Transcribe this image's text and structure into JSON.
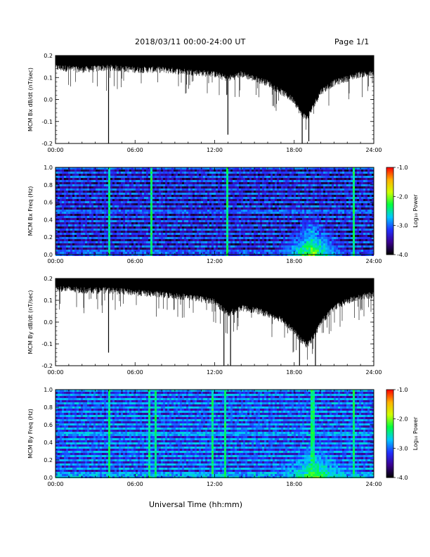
{
  "header": {
    "title": "2018/03/11  00:00-24:00 UT",
    "page": "Page 1/1"
  },
  "xaxis": {
    "label": "Universal Time (hh:mm)",
    "ticks": [
      "00:00",
      "06:00",
      "12:00",
      "18:00",
      "24:00"
    ]
  },
  "colorbar": {
    "label": "Log₁₀ Power",
    "ticks": [
      "-1.0",
      "-2.0",
      "-3.0",
      "-4.0"
    ],
    "range": [
      -4.0,
      -1.0
    ],
    "colormap": [
      "#000000",
      "#3a0090",
      "#2030ff",
      "#00c8ff",
      "#00ff40",
      "#d0ff00",
      "#ffb000",
      "#ff0000"
    ]
  },
  "chart_data": [
    {
      "type": "line",
      "ylabel": "MCM Bx dB/dt (nT/sec)",
      "xlim": [
        0,
        24
      ],
      "ylim": [
        -0.2,
        0.2
      ],
      "yticks": [
        "0.2",
        "0.1",
        "0.0",
        "-0.1",
        "-0.2"
      ],
      "x_ticks": [
        "00:00",
        "06:00",
        "12:00",
        "18:00",
        "24:00"
      ],
      "envelope": {
        "hours": [
          0,
          2,
          4,
          6,
          8,
          10,
          12,
          13,
          14,
          16,
          17,
          18,
          18.5,
          19,
          19.5,
          20,
          21,
          22,
          23,
          24
        ],
        "upper": [
          0.2,
          0.2,
          0.2,
          0.2,
          0.2,
          0.2,
          0.2,
          0.2,
          0.2,
          0.2,
          0.2,
          0.2,
          0.2,
          0.2,
          0.2,
          0.2,
          0.2,
          0.2,
          0.2,
          0.2
        ],
        "lower": [
          0.13,
          0.12,
          0.13,
          0.12,
          0.12,
          0.11,
          0.1,
          0.08,
          0.1,
          0.06,
          0.02,
          -0.02,
          -0.08,
          -0.1,
          -0.04,
          0.02,
          0.06,
          0.08,
          0.1,
          0.1
        ]
      },
      "spikes": [
        {
          "hour": 4.0,
          "value": -0.2
        },
        {
          "hour": 13.0,
          "value": -0.16
        },
        {
          "hour": 18.6,
          "value": -0.2
        },
        {
          "hour": 19.1,
          "value": -0.19
        }
      ]
    },
    {
      "type": "heatmap",
      "ylabel": "MCM Bx Freq (Hz)",
      "xlim": [
        0,
        24
      ],
      "ylim": [
        0.0,
        1.0
      ],
      "yticks": [
        "1.0",
        "0.8",
        "0.6",
        "0.4",
        "0.2",
        "0.0"
      ],
      "x_ticks": [
        "00:00",
        "06:00",
        "12:00",
        "18:00",
        "24:00"
      ],
      "zlabel": "Log₁₀ Power",
      "zlim": [
        -4.0,
        -1.0
      ],
      "background_level": -3.6,
      "harmonic_lines_hz": [
        0.05,
        0.1,
        0.15,
        0.2,
        0.25,
        0.3,
        0.35,
        0.4,
        0.45,
        0.5,
        0.55,
        0.6,
        0.65,
        0.7,
        0.75,
        0.8,
        0.85,
        0.9,
        0.95,
        1.0
      ],
      "harmonic_level": -3.0,
      "vertical_bursts_hours": [
        4.0,
        7.2,
        13.0,
        22.5
      ],
      "activity": {
        "start_hour": 16.0,
        "peak_hour": 19.3,
        "end_hour": 22.0,
        "max_freq_hz": 0.5,
        "peak_level": -2.0
      }
    },
    {
      "type": "line",
      "ylabel": "MCM By dB/dt (nT/sec)",
      "xlim": [
        0,
        24
      ],
      "ylim": [
        -0.2,
        0.2
      ],
      "yticks": [
        "0.2",
        "0.1",
        "0.0",
        "-0.1",
        "-0.2"
      ],
      "x_ticks": [
        "00:00",
        "06:00",
        "12:00",
        "18:00",
        "24:00"
      ],
      "envelope": {
        "hours": [
          0,
          2,
          4,
          6,
          8,
          10,
          12,
          13,
          14,
          15,
          16,
          17,
          18,
          18.5,
          19,
          19.5,
          20,
          21,
          22,
          23,
          24
        ],
        "upper": [
          0.2,
          0.2,
          0.2,
          0.2,
          0.2,
          0.2,
          0.2,
          0.2,
          0.2,
          0.2,
          0.2,
          0.2,
          0.2,
          0.2,
          0.2,
          0.2,
          0.2,
          0.2,
          0.2,
          0.2,
          0.2
        ],
        "lower": [
          0.14,
          0.13,
          0.13,
          0.12,
          0.11,
          0.1,
          0.08,
          0.02,
          0.05,
          0.04,
          0.02,
          0.0,
          -0.06,
          -0.1,
          -0.12,
          -0.08,
          -0.02,
          0.05,
          0.08,
          0.1,
          0.11
        ]
      },
      "spikes": [
        {
          "hour": 4.0,
          "value": -0.14
        },
        {
          "hour": 12.7,
          "value": -0.2
        },
        {
          "hour": 13.2,
          "value": -0.2
        },
        {
          "hour": 18.4,
          "value": -0.2
        },
        {
          "hour": 19.6,
          "value": -0.2
        }
      ]
    },
    {
      "type": "heatmap",
      "ylabel": "MCM By Freq (Hz)",
      "xlim": [
        0,
        24
      ],
      "ylim": [
        0.0,
        1.0
      ],
      "yticks": [
        "1.0",
        "0.8",
        "0.6",
        "0.4",
        "0.2",
        "0.0"
      ],
      "x_ticks": [
        "00:00",
        "06:00",
        "12:00",
        "18:00",
        "24:00"
      ],
      "zlabel": "Log₁₀ Power",
      "zlim": [
        -4.0,
        -1.0
      ],
      "background_level": -3.3,
      "harmonic_lines_hz": [
        0.05,
        0.1,
        0.15,
        0.2,
        0.25,
        0.3,
        0.35,
        0.4,
        0.45,
        0.5,
        0.55,
        0.6,
        0.65,
        0.7,
        0.75,
        0.8,
        0.85,
        0.9,
        0.95,
        1.0
      ],
      "harmonic_level": -2.8,
      "vertical_bursts_hours": [
        4.0,
        7.1,
        7.5,
        11.9,
        12.8,
        19.4,
        22.5
      ],
      "activity": {
        "start_hour": 15.5,
        "peak_hour": 19.5,
        "end_hour": 23.0,
        "max_freq_hz": 0.4,
        "peak_level": -2.2
      }
    }
  ]
}
